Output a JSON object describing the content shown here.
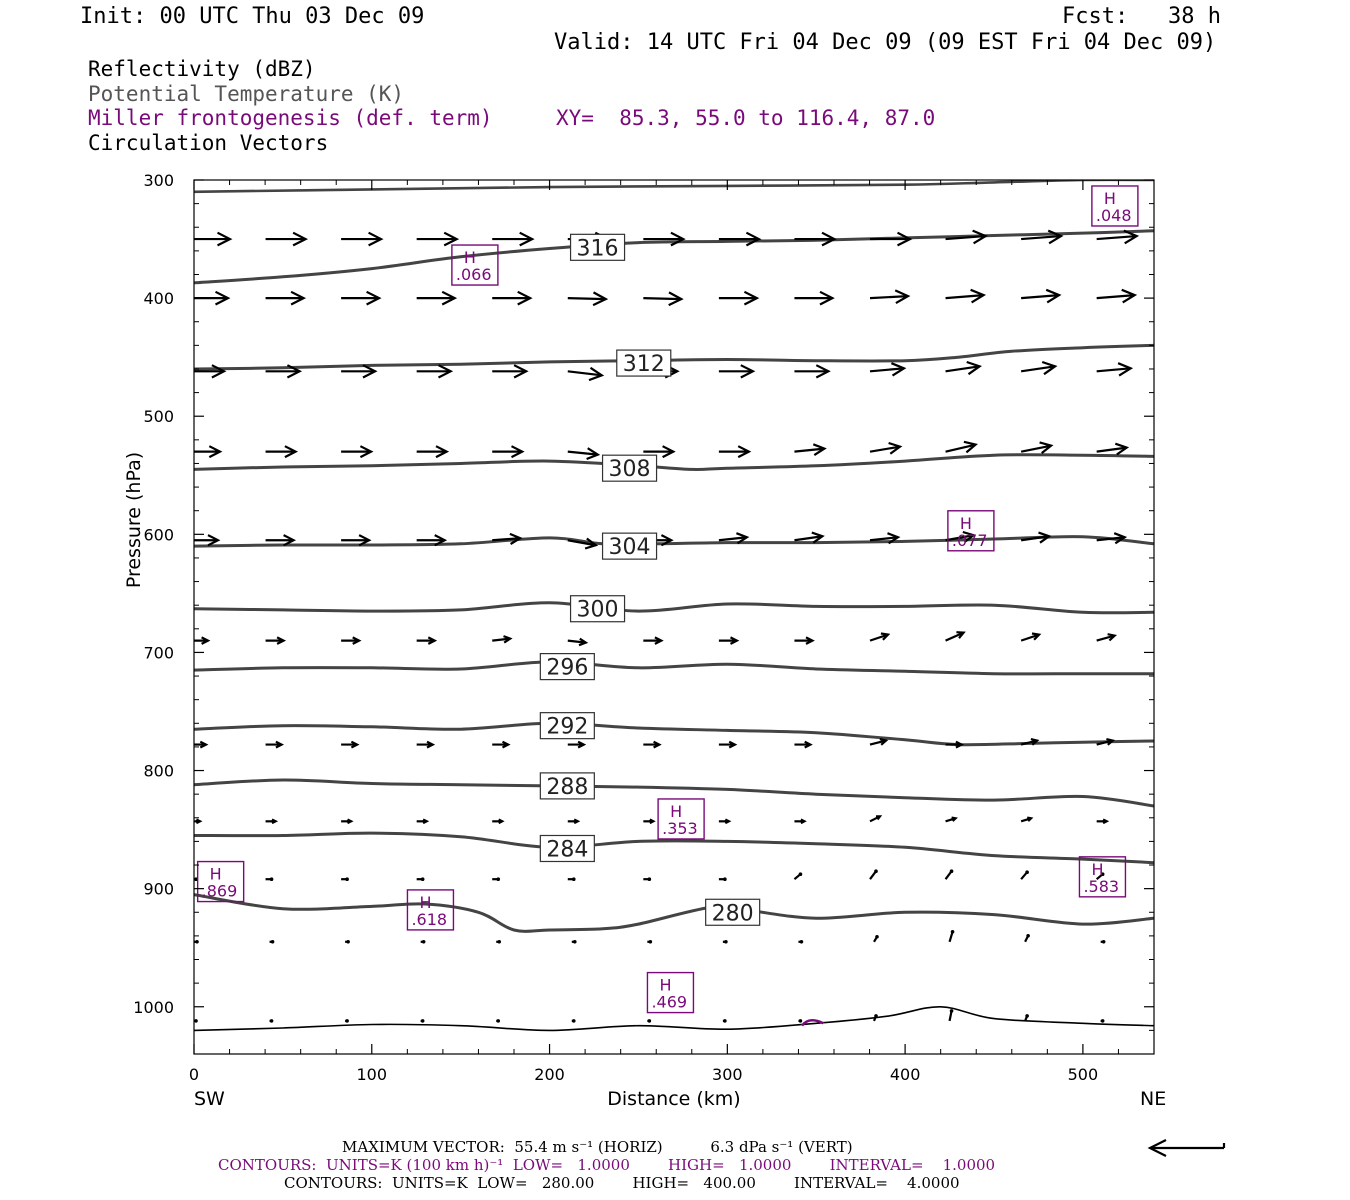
{
  "header": {
    "init": "Init: 00 UTC Thu 03 Dec 09",
    "fcst": "Fcst:   38 h",
    "valid": "Valid: 14 UTC Fri 04 Dec 09 (09 EST Fri 04 Dec 09)"
  },
  "legend": {
    "line1": "Reflectivity (dBZ)",
    "line2": "Potential Temperature (K)",
    "line3": "Miller frontogenesis (def. term)",
    "xy": "XY=  85.3, 55.0 to 116.4, 87.0",
    "line4": "Circulation Vectors"
  },
  "footer": {
    "max_vector": "MAXIMUM VECTOR:  55.4 m s⁻¹ (HORIZ)          6.3 dPa s⁻¹ (VERT)",
    "contours_purple": "CONTOURS:  UNITS=K (100 km h)⁻¹  LOW=   1.0000        HIGH=   1.0000        INTERVAL=    1.0000",
    "contours_black": "CONTOURS:  UNITS=K  LOW=   280.00        HIGH=   400.00        INTERVAL=    4.0000"
  },
  "colors": {
    "contour": "#444444",
    "frontogenesis": "#7a0a7a",
    "vector": "#000000"
  },
  "chart_data": {
    "type": "line",
    "xlabel": "Distance (km)",
    "ylabel": "Pressure (hPa)",
    "xlim": [
      0,
      540
    ],
    "ylim": [
      1040,
      300
    ],
    "y_scale": "linear, inverted",
    "x_ticks": [
      0,
      100,
      200,
      300,
      400,
      500
    ],
    "y_ticks": [
      300,
      400,
      500,
      600,
      700,
      800,
      900,
      1000
    ],
    "x_end_labels": {
      "left": "SW",
      "right": "NE"
    },
    "series": [
      {
        "label": "",
        "x": [
          0,
          100,
          200,
          300,
          400,
          450,
          500,
          540
        ],
        "y": [
          310,
          308,
          306,
          305,
          304,
          302,
          300,
          300
        ]
      },
      {
        "label": "316",
        "x": [
          0,
          50,
          100,
          150,
          200,
          250,
          300,
          350,
          400,
          450,
          500,
          540
        ],
        "y": [
          387,
          382,
          375,
          365,
          358,
          353,
          352,
          351,
          349,
          347,
          345,
          343
        ]
      },
      {
        "label": "312",
        "x": [
          0,
          50,
          100,
          150,
          200,
          250,
          300,
          350,
          400,
          430,
          460,
          500,
          540
        ],
        "y": [
          460,
          459,
          457,
          456,
          454,
          453,
          452,
          453,
          453,
          450,
          445,
          442,
          440
        ]
      },
      {
        "label": "308",
        "x": [
          0,
          50,
          100,
          150,
          200,
          250,
          280,
          300,
          350,
          400,
          450,
          500,
          540
        ],
        "y": [
          545,
          543,
          542,
          540,
          538,
          542,
          545,
          544,
          542,
          538,
          533,
          533,
          534
        ]
      },
      {
        "label": "304",
        "x": [
          0,
          50,
          100,
          150,
          200,
          230,
          260,
          300,
          350,
          400,
          450,
          500,
          540
        ],
        "y": [
          610,
          609,
          609,
          608,
          603,
          608,
          608,
          607,
          607,
          606,
          604,
          602,
          608
        ]
      },
      {
        "label": "300",
        "x": [
          0,
          50,
          100,
          150,
          200,
          250,
          300,
          350,
          400,
          450,
          500,
          540
        ],
        "y": [
          663,
          664,
          665,
          664,
          658,
          665,
          659,
          661,
          661,
          660,
          666,
          666
        ]
      },
      {
        "label": "296",
        "x": [
          0,
          50,
          100,
          150,
          200,
          250,
          300,
          350,
          400,
          450,
          500,
          540
        ],
        "y": [
          715,
          713,
          713,
          714,
          708,
          713,
          710,
          714,
          716,
          718,
          718,
          718
        ]
      },
      {
        "label": "292",
        "x": [
          0,
          50,
          100,
          150,
          200,
          250,
          300,
          350,
          400,
          430,
          470,
          500,
          540
        ],
        "y": [
          765,
          762,
          763,
          765,
          760,
          764,
          766,
          768,
          774,
          778,
          777,
          776,
          775
        ]
      },
      {
        "label": "288",
        "x": [
          0,
          50,
          100,
          150,
          200,
          250,
          300,
          350,
          400,
          450,
          500,
          540
        ],
        "y": [
          812,
          808,
          811,
          812,
          813,
          814,
          816,
          820,
          823,
          825,
          822,
          830
        ]
      },
      {
        "label": "284",
        "x": [
          0,
          50,
          100,
          150,
          200,
          250,
          300,
          350,
          400,
          450,
          500,
          540
        ],
        "y": [
          855,
          855,
          853,
          856,
          865,
          860,
          860,
          862,
          865,
          872,
          875,
          878
        ]
      },
      {
        "label": "280",
        "x": [
          0,
          50,
          100,
          130,
          160,
          180,
          200,
          230,
          250,
          290,
          310,
          350,
          400,
          450,
          500,
          540
        ],
        "y": [
          905,
          917,
          915,
          913,
          920,
          935,
          935,
          934,
          930,
          916,
          918,
          925,
          920,
          922,
          930,
          925
        ]
      },
      {
        "label": "",
        "x": [
          0,
          50,
          100,
          150,
          200,
          250,
          300,
          350,
          390,
          420,
          450,
          500,
          540
        ],
        "y": [
          1020,
          1018,
          1015,
          1016,
          1020,
          1016,
          1019,
          1014,
          1008,
          1000,
          1010,
          1014,
          1016
        ]
      }
    ],
    "contour_label_positions": [
      {
        "label": "316",
        "x": 227,
        "y": 357
      },
      {
        "label": "312",
        "x": 253,
        "y": 455
      },
      {
        "label": "308",
        "x": 245,
        "y": 544
      },
      {
        "label": "304",
        "x": 245,
        "y": 610
      },
      {
        "label": "300",
        "x": 227,
        "y": 663
      },
      {
        "label": "296",
        "x": 210,
        "y": 712
      },
      {
        "label": "292",
        "x": 210,
        "y": 762
      },
      {
        "label": "288",
        "x": 210,
        "y": 813
      },
      {
        "label": "284",
        "x": 210,
        "y": 866
      },
      {
        "label": "280",
        "x": 303,
        "y": 920
      }
    ],
    "frontogenesis_maxima": [
      {
        "marker": "H",
        "value": ".048",
        "x": 518,
        "y": 322
      },
      {
        "marker": "H",
        "value": ".066",
        "x": 158,
        "y": 372
      },
      {
        "marker": "H",
        "value": ".077",
        "x": 437,
        "y": 597
      },
      {
        "marker": "H",
        "value": ".353",
        "x": 274,
        "y": 841
      },
      {
        "marker": "H",
        "value": ".869",
        "x": 15,
        "y": 894
      },
      {
        "marker": "H",
        "value": ".618",
        "x": 133,
        "y": 918
      },
      {
        "marker": "H",
        "value": ".583",
        "x": 511,
        "y": 890
      },
      {
        "marker": "H",
        "value": ".469",
        "x": 268,
        "y": 988
      }
    ],
    "vector_levels": [
      {
        "p": 350,
        "len": 40,
        "jitter": [
          0,
          0,
          0,
          0,
          0,
          0,
          0,
          0,
          0,
          0,
          -3,
          -3,
          -3
        ]
      },
      {
        "p": 400,
        "len": 38,
        "jitter": [
          0,
          0,
          0,
          0,
          0,
          1,
          1,
          0,
          0,
          -2,
          -3,
          -3,
          -3
        ]
      },
      {
        "p": 462,
        "len": 34,
        "jitter": [
          0,
          0,
          0,
          0,
          0,
          4,
          0,
          0,
          0,
          -3,
          -5,
          -5,
          -3
        ]
      },
      {
        "p": 530,
        "len": 30,
        "jitter": [
          0,
          0,
          0,
          0,
          0,
          3,
          0,
          0,
          -3,
          -5,
          -7,
          -6,
          -4
        ]
      },
      {
        "p": 605,
        "len": 28,
        "jitter": [
          0,
          0,
          0,
          0,
          -2,
          5,
          0,
          -3,
          -4,
          -3,
          -5,
          -4,
          -3
        ]
      },
      {
        "p": 690,
        "len": 18,
        "jitter": [
          0,
          0,
          0,
          0,
          -2,
          2,
          0,
          0,
          0,
          -6,
          -8,
          -6,
          -5
        ]
      },
      {
        "p": 778,
        "len": 16,
        "jitter": [
          0,
          0,
          0,
          0,
          0,
          0,
          0,
          0,
          0,
          -4,
          0,
          -4,
          -4
        ]
      },
      {
        "p": 843,
        "len": 10,
        "jitter": [
          0,
          0,
          0,
          0,
          0,
          0,
          0,
          0,
          0,
          -5,
          -3,
          -3,
          0
        ]
      },
      {
        "p": 892,
        "len": 6,
        "jitter": [
          0,
          0,
          0,
          0,
          0,
          0,
          0,
          0,
          -5,
          -8,
          -8,
          -7,
          -5
        ]
      },
      {
        "p": 945,
        "len": 3,
        "jitter": [
          0,
          0,
          0,
          0,
          0,
          0,
          0,
          0,
          0,
          -5,
          -10,
          -6,
          0
        ]
      },
      {
        "p": 1012,
        "len": 2,
        "jitter": [
          0,
          0,
          0,
          0,
          0,
          0,
          0,
          0,
          0,
          -5,
          -10,
          -5,
          0
        ]
      }
    ]
  }
}
